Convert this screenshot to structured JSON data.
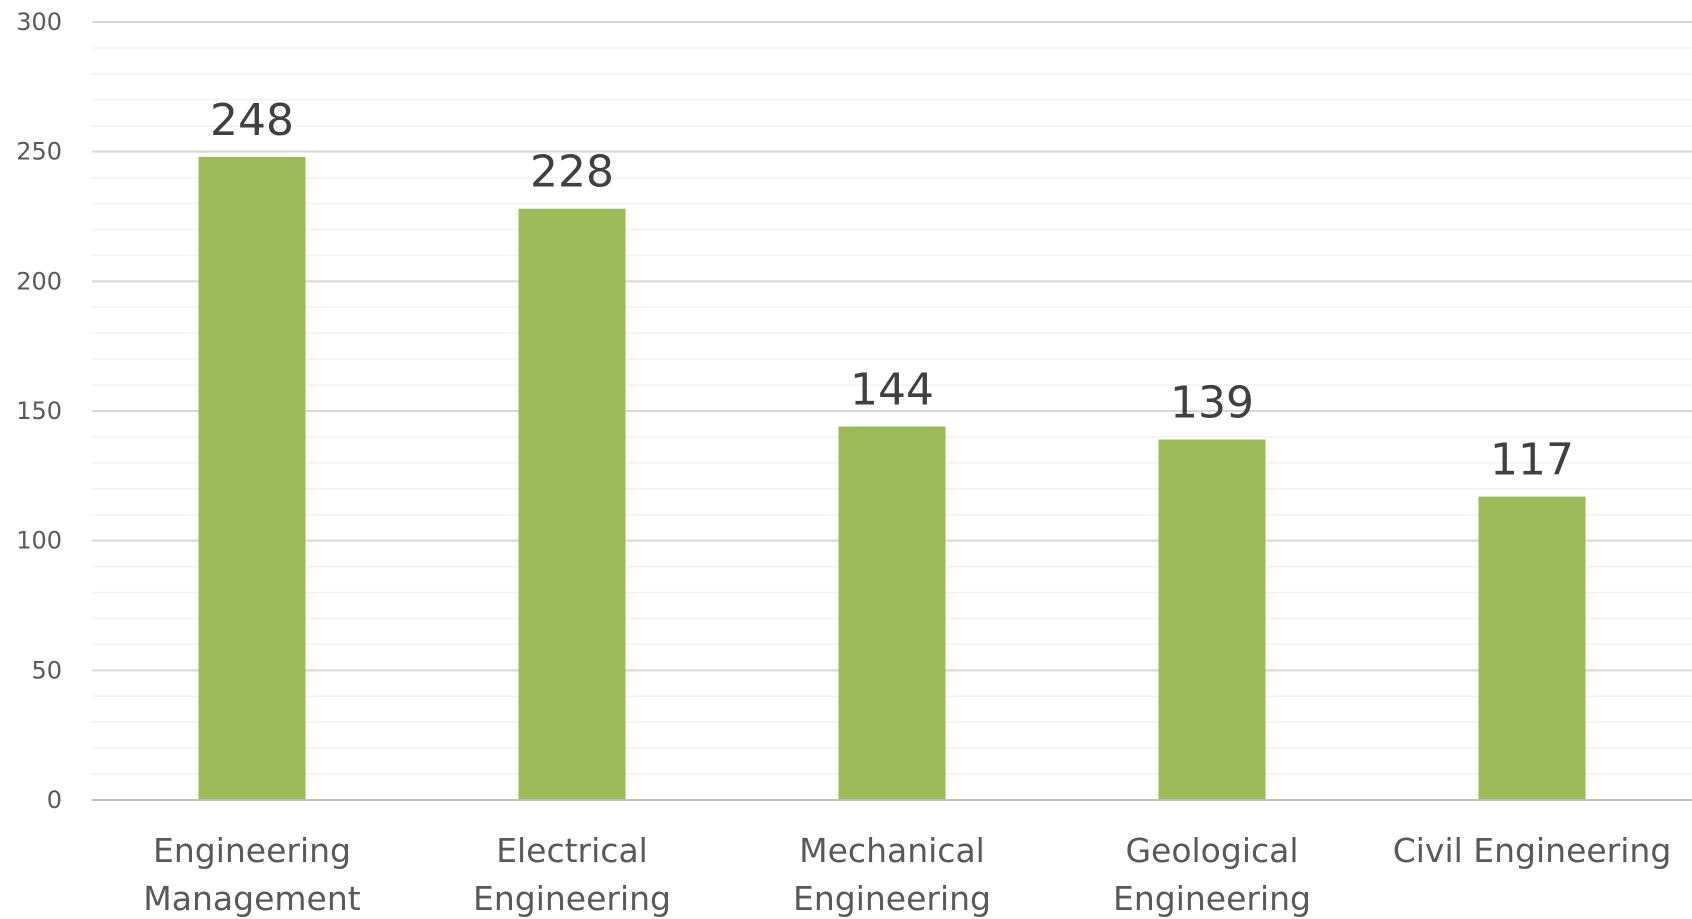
{
  "chart_data": {
    "type": "bar",
    "categories": [
      [
        "Engineering",
        "Management"
      ],
      [
        "Electrical",
        "Engineering"
      ],
      [
        "Mechanical",
        "Engineering"
      ],
      [
        "Geological",
        "Engineering"
      ],
      [
        "Civil Engineering"
      ]
    ],
    "values": [
      248,
      228,
      144,
      139,
      117
    ],
    "data_labels": [
      "248",
      "228",
      "144",
      "139",
      "117"
    ],
    "title": "",
    "xlabel": "",
    "ylabel": "",
    "ylim": [
      0,
      300
    ],
    "yticks": [
      0,
      50,
      100,
      150,
      200,
      250,
      300
    ],
    "ytick_labels": [
      "0",
      "50",
      "100",
      "150",
      "200",
      "250",
      "300"
    ],
    "minor_grid_step": 10,
    "grid": true,
    "legend": "none",
    "colors": {
      "bar": "#9BBB59",
      "major_grid": "#D9D9D9",
      "minor_grid": "#F2F2F2",
      "axis": "#BFBFBF"
    }
  }
}
